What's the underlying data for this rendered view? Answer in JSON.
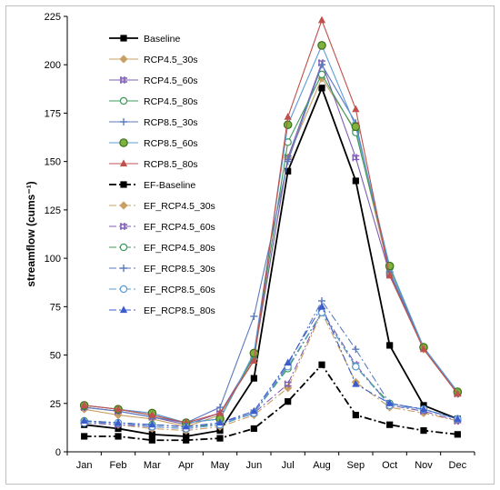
{
  "chart_data": {
    "type": "line",
    "categories": [
      "Jan",
      "Feb",
      "Mar",
      "Apr",
      "May",
      "Jun",
      "Jul",
      "Aug",
      "Sep",
      "Oct",
      "Nov",
      "Dec"
    ],
    "ylabel": "streamflow (cums⁻¹)",
    "ylim": [
      0,
      225
    ],
    "yticks": [
      0,
      25,
      50,
      75,
      100,
      125,
      150,
      175,
      200,
      225
    ],
    "grid": false,
    "legend_position": "top-left inside plot",
    "series": [
      {
        "name": "Baseline",
        "color": "#000000",
        "dash": "solid",
        "marker": "square",
        "values": [
          14,
          12,
          9,
          8,
          11,
          38,
          145,
          188,
          140,
          55,
          24,
          17
        ]
      },
      {
        "name": "RCP4.5_30s",
        "color": "#c8a064",
        "dash": "solid",
        "marker": "diamond",
        "values": [
          22,
          19,
          17,
          13,
          19,
          48,
          152,
          193,
          166,
          92,
          53,
          30
        ]
      },
      {
        "name": "RCP4.5_60s",
        "color": "#7f5fb4",
        "dash": "solid",
        "marker": "hash",
        "values": [
          23,
          21,
          18,
          14,
          20,
          49,
          152,
          201,
          152,
          92,
          54,
          30
        ]
      },
      {
        "name": "RCP4.5_80s",
        "color": "#3c9a5a",
        "dash": "solid",
        "marker": "circle-open",
        "values": [
          24,
          22,
          19,
          15,
          17,
          50,
          160,
          195,
          165,
          95,
          54,
          31
        ]
      },
      {
        "name": "RCP8.5_30s",
        "color": "#5a7abe",
        "dash": "solid",
        "marker": "plus",
        "values": [
          23,
          21,
          18,
          15,
          23,
          70,
          150,
          200,
          170,
          93,
          54,
          31
        ]
      },
      {
        "name": "RCP8.5_60s",
        "color": "#5b9bd5",
        "dash": "solid",
        "marker": "circle-green",
        "values": [
          24,
          22,
          20,
          15,
          17,
          51,
          169,
          210,
          168,
          96,
          54,
          31
        ]
      },
      {
        "name": "RCP8.5_80s",
        "color": "#c0504d",
        "dash": "solid",
        "marker": "triangle",
        "values": [
          24,
          22,
          19,
          15,
          20,
          47,
          173,
          223,
          177,
          91,
          53,
          30
        ]
      },
      {
        "name": "EF-Baseline",
        "color": "#000000",
        "dash": "dashdot",
        "marker": "square",
        "values": [
          8,
          8,
          6,
          6,
          7,
          12,
          26,
          45,
          19,
          14,
          11,
          9
        ]
      },
      {
        "name": "EF_RCP4.5_30s",
        "color": "#c8a064",
        "dash": "dashdot",
        "marker": "diamond",
        "values": [
          15,
          14,
          12,
          11,
          13,
          19,
          33,
          72,
          36,
          23,
          20,
          16
        ]
      },
      {
        "name": "EF_RCP4.5_60s",
        "color": "#7f5fb4",
        "dash": "dashdot",
        "marker": "hash",
        "values": [
          15,
          14,
          13,
          12,
          14,
          20,
          35,
          73,
          45,
          24,
          21,
          16
        ]
      },
      {
        "name": "EF_RCP4.5_80s",
        "color": "#3c9a5a",
        "dash": "dashdot",
        "marker": "circle-open",
        "values": [
          16,
          15,
          14,
          13,
          14,
          20,
          43,
          72,
          44,
          25,
          22,
          17
        ]
      },
      {
        "name": "EF_RCP8.5_30s",
        "color": "#5a7abe",
        "dash": "dashdot",
        "marker": "plus",
        "values": [
          16,
          15,
          14,
          13,
          15,
          20,
          45,
          78,
          53,
          25,
          22,
          17
        ]
      },
      {
        "name": "EF_RCP8.5_60s",
        "color": "#5b9bd5",
        "dash": "dashdot",
        "marker": "circle-open",
        "values": [
          15,
          15,
          13,
          12,
          14,
          20,
          44,
          72,
          44,
          24,
          22,
          17
        ]
      },
      {
        "name": "EF_RCP8.5_80s",
        "color": "#3c5ccc",
        "dash": "dashdot",
        "marker": "triangle",
        "values": [
          16,
          15,
          14,
          13,
          15,
          21,
          46,
          75,
          35,
          25,
          22,
          17
        ]
      }
    ]
  }
}
